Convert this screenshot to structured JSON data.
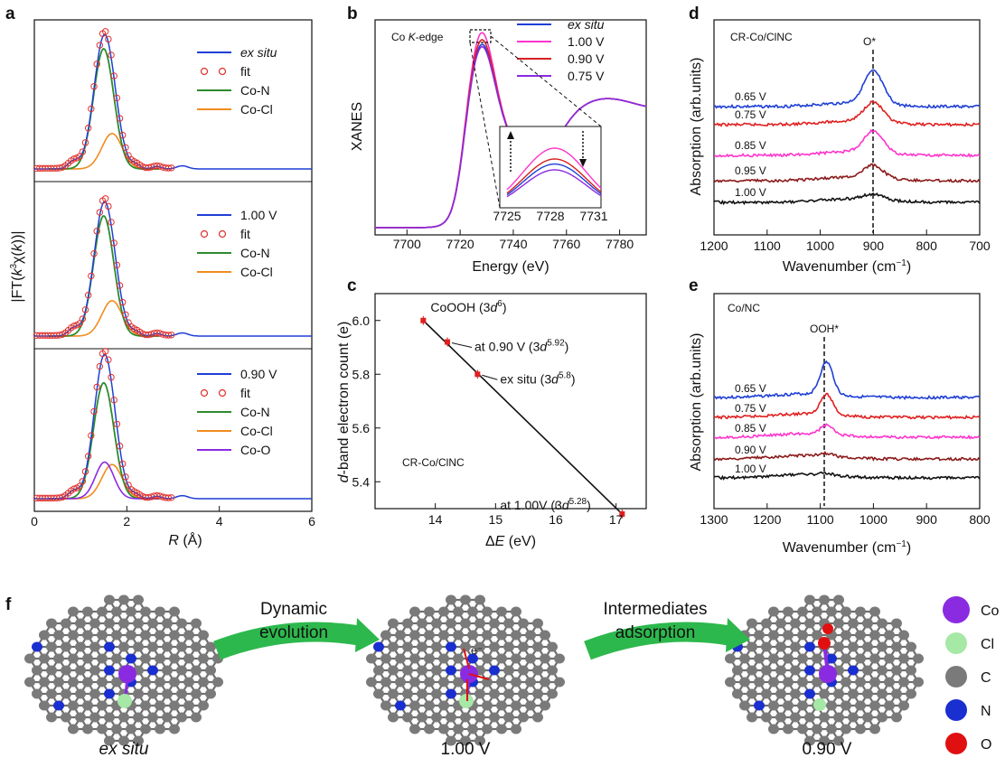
{
  "panel_labels": [
    "a",
    "b",
    "c",
    "d",
    "e",
    "f"
  ],
  "chart_data": [
    {
      "panel": "a",
      "type": "line",
      "xlabel": "R (Å)",
      "ylabel": "|FT(k³χ(k))|",
      "xlim": [
        0,
        6
      ],
      "xticks": [
        "0",
        "2",
        "4",
        "6"
      ],
      "subplots": [
        {
          "legend": [
            "ex situ",
            "fit",
            "Co-N",
            "Co-Cl"
          ]
        },
        {
          "legend": [
            "1.00 V",
            "fit",
            "Co-N",
            "Co-Cl"
          ]
        },
        {
          "legend": [
            "0.90 V",
            "fit",
            "Co-N",
            "Co-Cl",
            "Co-O"
          ]
        }
      ],
      "series_colors": {
        "data": "#1f3fd6",
        "fit": "#e0302a",
        "Co-N": "#2e8b2e",
        "Co-Cl": "#f08c1e",
        "Co-O": "#8a2be2"
      }
    },
    {
      "panel": "b",
      "type": "line",
      "annotation": "Co K-edge",
      "xlabel": "Energy (eV)",
      "ylabel": "XANES",
      "xlim": [
        7688,
        7790
      ],
      "xticks": [
        "7700",
        "7720",
        "7740",
        "7760",
        "7780"
      ],
      "inset_xticks": [
        "7725",
        "7728",
        "7731"
      ],
      "legend": [
        "ex situ",
        "1.00 V",
        "0.90 V",
        "0.75 V"
      ],
      "colors": [
        "#1f3fd6",
        "#ff33cc",
        "#d62020",
        "#8a2be2"
      ]
    },
    {
      "panel": "c",
      "type": "scatter",
      "xlabel": "ΔE (eV)",
      "ylabel": "d-band electron count (e)",
      "xlim": [
        13,
        17.5
      ],
      "ylim": [
        5.3,
        6.1
      ],
      "xticks": [
        "14",
        "15",
        "16",
        "17"
      ],
      "yticks": [
        "5.4",
        "5.6",
        "5.8",
        "6.0"
      ],
      "points": [
        {
          "x": 13.8,
          "y": 6.0,
          "label": "CoOOH (3d",
          "sup": "6",
          "tail": ")"
        },
        {
          "x": 14.2,
          "y": 5.92,
          "label": "at 0.90 V (3d",
          "sup": "5.92",
          "tail": ")"
        },
        {
          "x": 14.7,
          "y": 5.8,
          "label": "ex situ (3d",
          "sup": "5.8",
          "tail": ")"
        },
        {
          "x": 17.1,
          "y": 5.28,
          "label": "at 1.00V (3d",
          "sup": "5.28",
          "tail": ")"
        }
      ],
      "annotation": "CR-Co/ClNC"
    },
    {
      "panel": "d",
      "type": "line",
      "title": "CR-Co/ClNC",
      "peak_label": "O*",
      "xlabel": "Wavenumber (cm⁻¹)",
      "ylabel": "Absorption (arb.units)",
      "xlim": [
        1200,
        700
      ],
      "xticks": [
        "1200",
        "1100",
        "1000",
        "900",
        "800",
        "700"
      ],
      "series": [
        {
          "name": "0.65 V",
          "color": "#1f3fd6"
        },
        {
          "name": "0.75 V",
          "color": "#e02020"
        },
        {
          "name": "0.85 V",
          "color": "#ff33cc"
        },
        {
          "name": "0.95 V",
          "color": "#8b1a1a"
        },
        {
          "name": "1.00 V",
          "color": "#111111"
        }
      ]
    },
    {
      "panel": "e",
      "type": "line",
      "title": "Co/NC",
      "peak_label": "OOH*",
      "xlabel": "Wavenumber (cm⁻¹)",
      "ylabel": "Absorption (arb.units)",
      "xlim": [
        1300,
        800
      ],
      "xticks": [
        "1300",
        "1200",
        "1100",
        "1000",
        "900",
        "800"
      ],
      "series": [
        {
          "name": "0.65 V",
          "color": "#1f3fd6"
        },
        {
          "name": "0.75 V",
          "color": "#e02020"
        },
        {
          "name": "0.85 V",
          "color": "#ff33cc"
        },
        {
          "name": "0.90 V",
          "color": "#8b1a1a"
        },
        {
          "name": "1.00 V",
          "color": "#111111"
        }
      ]
    }
  ],
  "panel_f": {
    "arrow1": [
      "Dynamic",
      "evolution"
    ],
    "arrow2": [
      "Intermediates",
      "adsorption"
    ],
    "captions": [
      "ex situ",
      "1.00 V",
      "0.90 V"
    ],
    "electron_label": "e⁻",
    "legend": [
      {
        "name": "Co",
        "color": "#8a2be2"
      },
      {
        "name": "Cl",
        "color": "#a6e8a6"
      },
      {
        "name": "C",
        "color": "#7a7a7a"
      },
      {
        "name": "N",
        "color": "#1a2fd0"
      },
      {
        "name": "O",
        "color": "#e01010"
      }
    ]
  }
}
